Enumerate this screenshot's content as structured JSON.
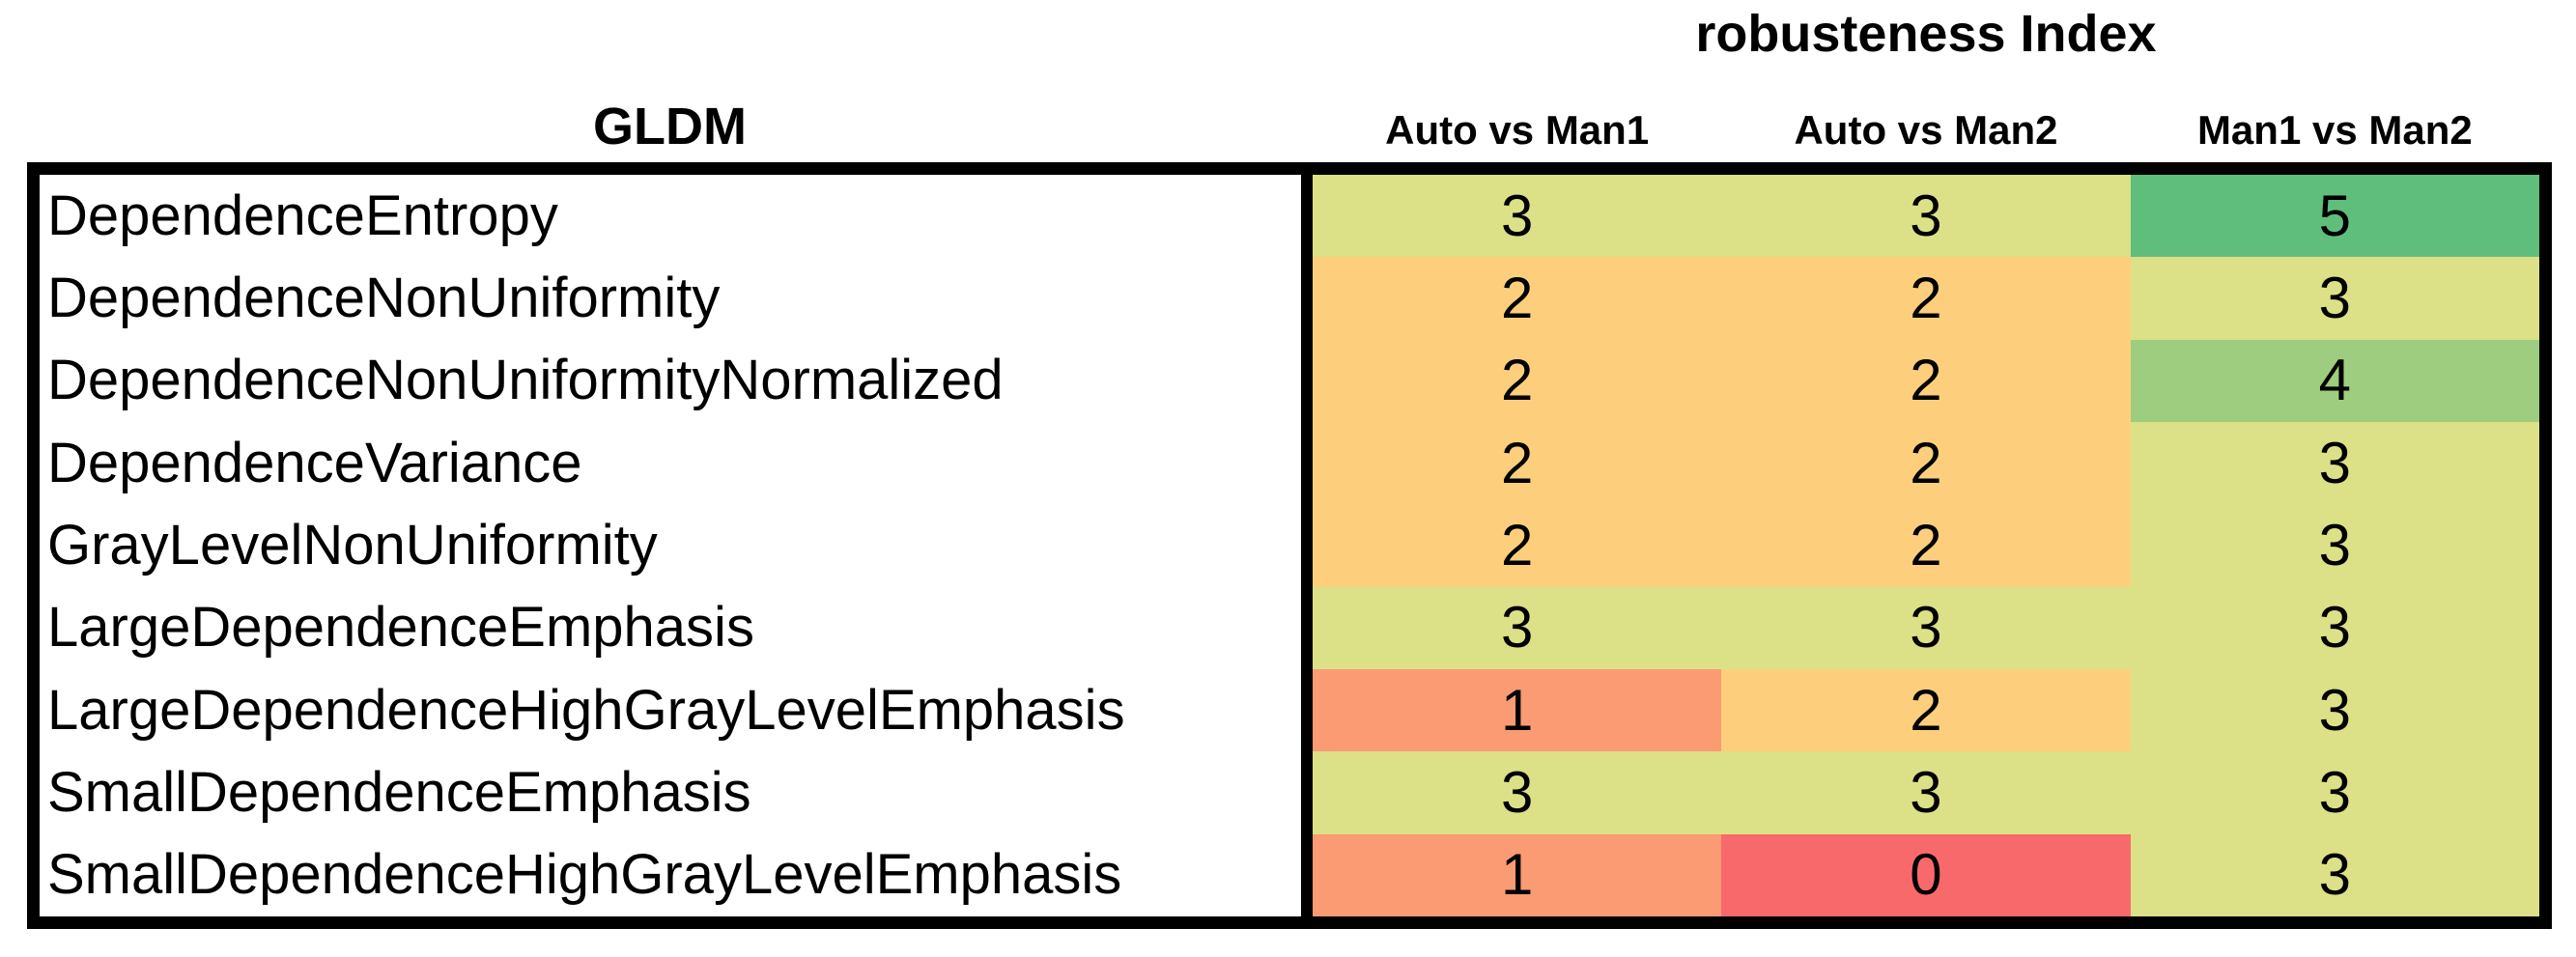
{
  "chart_data": {
    "type": "heatmap",
    "title": "robusteness Index",
    "row_group_title": "GLDM",
    "columns": [
      "Auto vs Man1",
      "Auto vs Man2",
      "Man1 vs Man2"
    ],
    "rows": [
      {
        "label": "DependenceEntropy",
        "values": [
          3,
          3,
          5
        ]
      },
      {
        "label": "DependenceNonUniformity",
        "values": [
          2,
          2,
          3
        ]
      },
      {
        "label": "DependenceNonUniformityNormalized",
        "values": [
          2,
          2,
          4
        ]
      },
      {
        "label": "DependenceVariance",
        "values": [
          2,
          2,
          3
        ]
      },
      {
        "label": "GrayLevelNonUniformity",
        "values": [
          2,
          2,
          3
        ]
      },
      {
        "label": "LargeDependenceEmphasis",
        "values": [
          3,
          3,
          3
        ]
      },
      {
        "label": "LargeDependenceHighGrayLevelEmphasis",
        "values": [
          1,
          2,
          3
        ]
      },
      {
        "label": "SmallDependenceEmphasis",
        "values": [
          3,
          3,
          3
        ]
      },
      {
        "label": "SmallDependenceHighGrayLevelEmphasis",
        "values": [
          1,
          0,
          3
        ]
      }
    ],
    "value_scale": {
      "min": 0,
      "max": 5
    },
    "value_colors": {
      "0": "#F8696C",
      "1": "#FA9B73",
      "2": "#FDCF7D",
      "3": "#DCE087",
      "4": "#9ECD7F",
      "5": "#5FBE7C"
    },
    "text_color": "#000000",
    "border_color": "#000000",
    "background": "#FFFFFF",
    "legend_position": "none",
    "grid": false
  }
}
